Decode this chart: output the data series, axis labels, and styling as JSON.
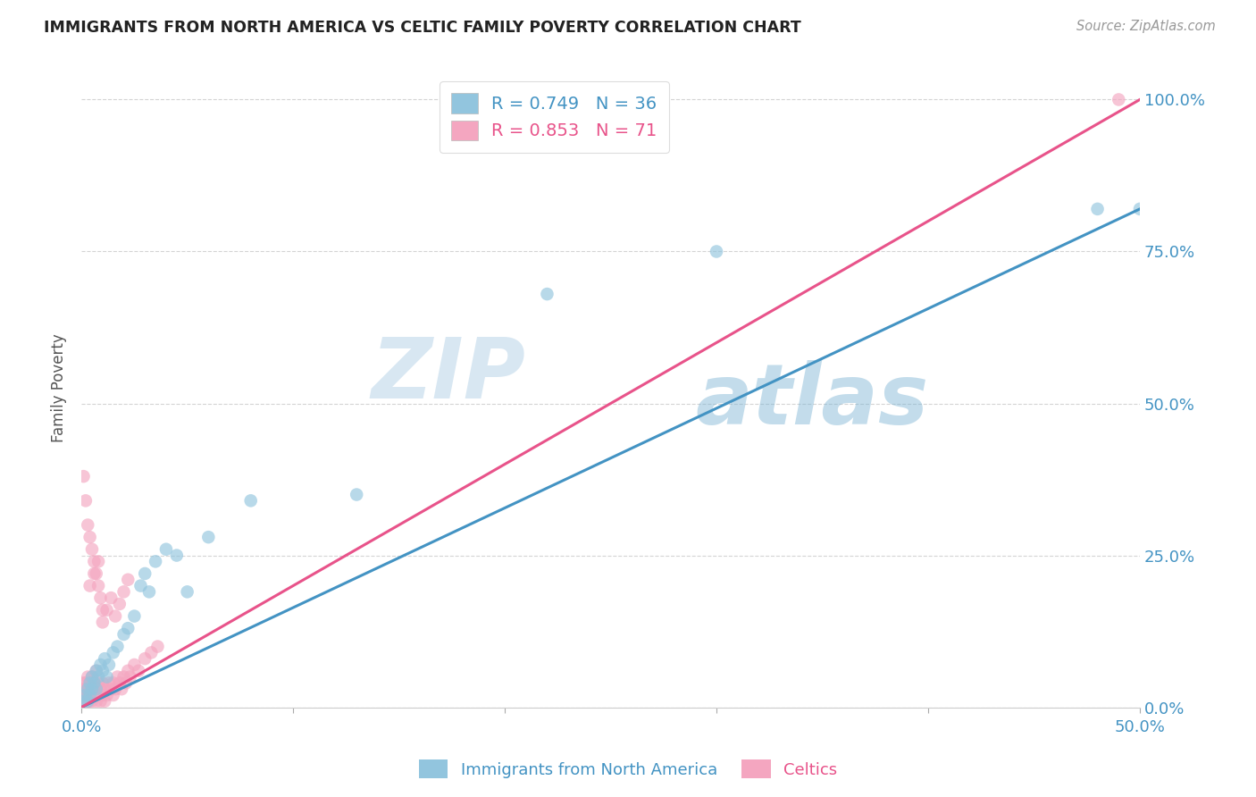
{
  "title": "IMMIGRANTS FROM NORTH AMERICA VS CELTIC FAMILY POVERTY CORRELATION CHART",
  "source": "Source: ZipAtlas.com",
  "ylabel": "Family Poverty",
  "right_yticks": [
    "0.0%",
    "25.0%",
    "50.0%",
    "75.0%",
    "100.0%"
  ],
  "right_ytick_vals": [
    0.0,
    0.25,
    0.5,
    0.75,
    1.0
  ],
  "blue_R": 0.749,
  "blue_N": 36,
  "pink_R": 0.853,
  "pink_N": 71,
  "watermark_zip": "ZIP",
  "watermark_atlas": "atlas",
  "blue_color": "#92c5de",
  "pink_color": "#f4a6c0",
  "blue_line_color": "#4393c3",
  "pink_line_color": "#e8538a",
  "legend_label_blue": "Immigrants from North America",
  "legend_label_pink": "Celtics",
  "blue_scatter_x": [
    0.001,
    0.002,
    0.003,
    0.003,
    0.004,
    0.004,
    0.005,
    0.005,
    0.006,
    0.007,
    0.007,
    0.008,
    0.009,
    0.01,
    0.011,
    0.012,
    0.013,
    0.015,
    0.017,
    0.02,
    0.022,
    0.025,
    0.028,
    0.03,
    0.032,
    0.035,
    0.04,
    0.045,
    0.05,
    0.06,
    0.08,
    0.13,
    0.22,
    0.3,
    0.48,
    0.5
  ],
  "blue_scatter_y": [
    0.01,
    0.02,
    0.01,
    0.03,
    0.02,
    0.04,
    0.03,
    0.05,
    0.04,
    0.03,
    0.06,
    0.05,
    0.07,
    0.06,
    0.08,
    0.05,
    0.07,
    0.09,
    0.1,
    0.12,
    0.13,
    0.15,
    0.2,
    0.22,
    0.19,
    0.24,
    0.26,
    0.25,
    0.19,
    0.28,
    0.34,
    0.35,
    0.68,
    0.75,
    0.82,
    0.82
  ],
  "pink_scatter_x": [
    0.0005,
    0.001,
    0.001,
    0.001,
    0.001,
    0.002,
    0.002,
    0.002,
    0.002,
    0.003,
    0.003,
    0.003,
    0.003,
    0.004,
    0.004,
    0.004,
    0.005,
    0.005,
    0.005,
    0.006,
    0.006,
    0.007,
    0.007,
    0.007,
    0.008,
    0.008,
    0.009,
    0.009,
    0.01,
    0.01,
    0.011,
    0.011,
    0.012,
    0.013,
    0.014,
    0.015,
    0.015,
    0.016,
    0.017,
    0.018,
    0.019,
    0.02,
    0.021,
    0.022,
    0.023,
    0.025,
    0.027,
    0.03,
    0.033,
    0.036,
    0.004,
    0.006,
    0.008,
    0.01,
    0.012,
    0.014,
    0.016,
    0.018,
    0.02,
    0.022,
    0.001,
    0.002,
    0.003,
    0.004,
    0.005,
    0.006,
    0.007,
    0.008,
    0.009,
    0.01,
    0.49
  ],
  "pink_scatter_y": [
    0.01,
    0.01,
    0.02,
    0.03,
    0.04,
    0.01,
    0.02,
    0.03,
    0.04,
    0.01,
    0.02,
    0.03,
    0.05,
    0.01,
    0.02,
    0.04,
    0.01,
    0.03,
    0.05,
    0.02,
    0.04,
    0.01,
    0.03,
    0.06,
    0.02,
    0.04,
    0.01,
    0.03,
    0.02,
    0.04,
    0.01,
    0.03,
    0.02,
    0.04,
    0.03,
    0.02,
    0.04,
    0.03,
    0.05,
    0.04,
    0.03,
    0.05,
    0.04,
    0.06,
    0.05,
    0.07,
    0.06,
    0.08,
    0.09,
    0.1,
    0.2,
    0.22,
    0.24,
    0.14,
    0.16,
    0.18,
    0.15,
    0.17,
    0.19,
    0.21,
    0.38,
    0.34,
    0.3,
    0.28,
    0.26,
    0.24,
    0.22,
    0.2,
    0.18,
    0.16,
    1.0
  ],
  "xlim": [
    0.0,
    0.5
  ],
  "ylim": [
    0.0,
    1.05
  ],
  "blue_line_x": [
    0.0,
    0.5
  ],
  "blue_line_y": [
    0.0,
    0.82
  ],
  "pink_line_x": [
    0.0,
    0.5
  ],
  "pink_line_y": [
    0.0,
    1.0
  ]
}
